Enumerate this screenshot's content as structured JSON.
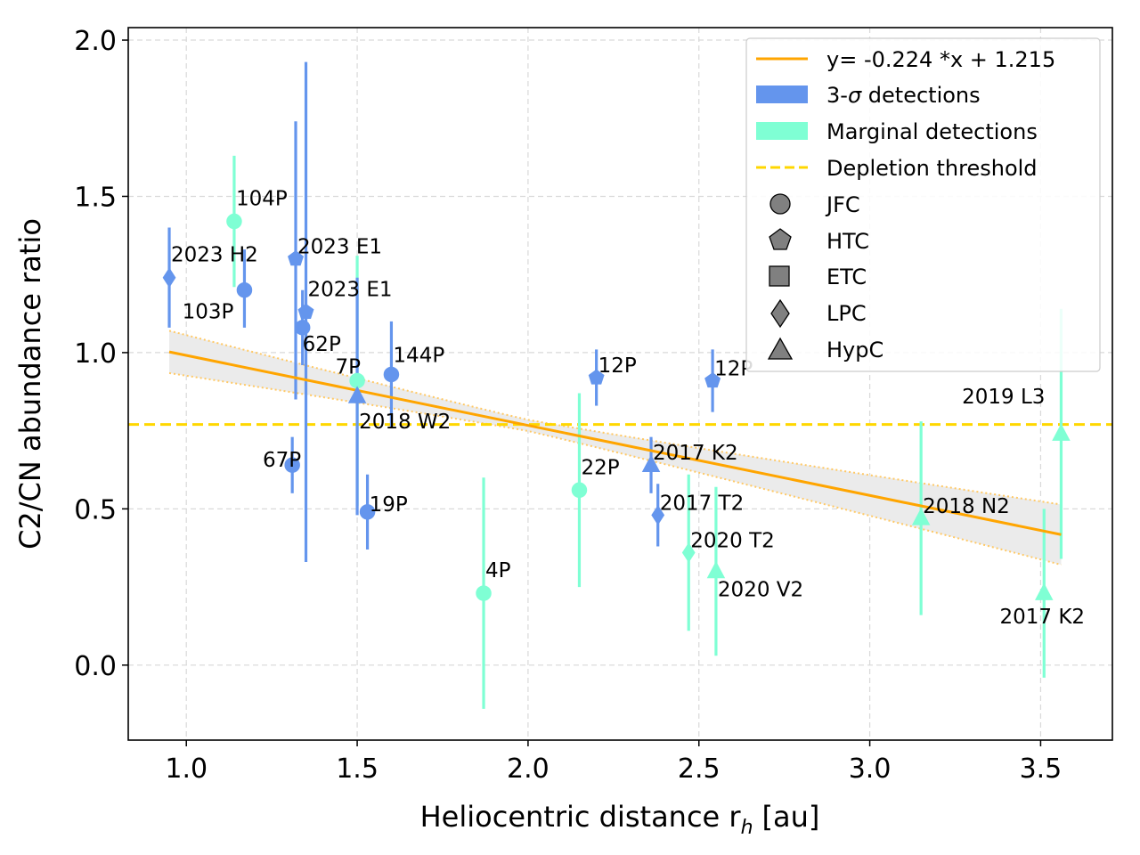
{
  "chart_data": {
    "type": "scatter",
    "xlabel": "Heliocentric distance r",
    "xlabel_sub": "h",
    "xlabel_unit": "[au]",
    "ylabel": "C2/CN abundance ratio",
    "xlim": [
      0.83,
      3.71
    ],
    "ylim": [
      -0.24,
      2.04
    ],
    "xticks": [
      "1.0",
      "1.5",
      "2.0",
      "2.5",
      "3.0",
      "3.5"
    ],
    "yticks": [
      "0.0",
      "0.5",
      "1.0",
      "1.5",
      "2.0"
    ],
    "grid": true,
    "legend_position": "top-right",
    "colors": {
      "detection": "#6495ED",
      "marginal": "#7FFFD4",
      "fit": "#FFA500",
      "threshold": "#FFD700",
      "band": "#EBEBEB"
    },
    "fit": {
      "label": "y= -0.224 *x + 1.215",
      "slope": -0.224,
      "intercept": 1.215,
      "x_range": [
        0.95,
        3.56
      ]
    },
    "threshold": {
      "label": "Depletion threshold",
      "y": 0.77
    },
    "legend": {
      "fit": "y= -0.224 *x + 1.215",
      "detections_prefix": "3-",
      "detections_sigma": "σ",
      "detections_suffix": " detections",
      "marginal": "Marginal detections",
      "threshold": "Depletion threshold",
      "shapes": [
        "JFC",
        "HTC",
        "ETC",
        "LPC",
        "HypC"
      ]
    },
    "series": [
      {
        "label": "2023 H2",
        "x": 0.95,
        "y": 1.24,
        "yerr_lo": 0.16,
        "yerr_hi": 0.16,
        "type": "LPC",
        "detection": "3-sigma"
      },
      {
        "label": "104P",
        "x": 1.14,
        "y": 1.42,
        "yerr_lo": 0.21,
        "yerr_hi": 0.21,
        "type": "JFC",
        "detection": "marginal"
      },
      {
        "label": "103P",
        "x": 1.17,
        "y": 1.2,
        "yerr_lo": 0.12,
        "yerr_hi": 0.13,
        "type": "JFC",
        "detection": "3-sigma"
      },
      {
        "label": "2023 E1",
        "x": 1.32,
        "y": 1.3,
        "yerr_lo": 0.45,
        "yerr_hi": 0.44,
        "type": "HTC",
        "detection": "3-sigma"
      },
      {
        "label": "2023 E1",
        "x": 1.35,
        "y": 1.13,
        "yerr_lo": 0.8,
        "yerr_hi": 0.8,
        "type": "HTC",
        "detection": "3-sigma"
      },
      {
        "label": "62P",
        "x": 1.34,
        "y": 1.08,
        "yerr_lo": 0.12,
        "yerr_hi": 0.12,
        "type": "JFC",
        "detection": "3-sigma"
      },
      {
        "label": "67P",
        "x": 1.31,
        "y": 0.64,
        "yerr_lo": 0.09,
        "yerr_hi": 0.09,
        "type": "JFC",
        "detection": "3-sigma"
      },
      {
        "label": "7P",
        "x": 1.5,
        "y": 0.91,
        "yerr_lo": 0.4,
        "yerr_hi": 0.4,
        "type": "JFC",
        "detection": "marginal"
      },
      {
        "label": "2018 W2",
        "x": 1.5,
        "y": 0.86,
        "yerr_lo": 0.38,
        "yerr_hi": 0.38,
        "type": "HypC",
        "detection": "3-sigma"
      },
      {
        "label": "144P",
        "x": 1.6,
        "y": 0.93,
        "yerr_lo": 0.17,
        "yerr_hi": 0.17,
        "type": "JFC",
        "detection": "3-sigma"
      },
      {
        "label": "19P",
        "x": 1.53,
        "y": 0.49,
        "yerr_lo": 0.12,
        "yerr_hi": 0.12,
        "type": "JFC",
        "detection": "3-sigma"
      },
      {
        "label": "4P",
        "x": 1.87,
        "y": 0.23,
        "yerr_lo": 0.37,
        "yerr_hi": 0.37,
        "type": "JFC",
        "detection": "marginal"
      },
      {
        "label": "22P",
        "x": 2.15,
        "y": 0.56,
        "yerr_lo": 0.31,
        "yerr_hi": 0.31,
        "type": "JFC",
        "detection": "marginal"
      },
      {
        "label": "12P",
        "x": 2.2,
        "y": 0.92,
        "yerr_lo": 0.09,
        "yerr_hi": 0.09,
        "type": "HTC",
        "detection": "3-sigma"
      },
      {
        "label": "2017 K2",
        "x": 2.36,
        "y": 0.64,
        "yerr_lo": 0.09,
        "yerr_hi": 0.09,
        "type": "HypC",
        "detection": "3-sigma"
      },
      {
        "label": "2017 T2",
        "x": 2.38,
        "y": 0.48,
        "yerr_lo": 0.1,
        "yerr_hi": 0.1,
        "type": "LPC",
        "detection": "3-sigma"
      },
      {
        "label": "2020 T2",
        "x": 2.47,
        "y": 0.36,
        "yerr_lo": 0.25,
        "yerr_hi": 0.25,
        "type": "LPC",
        "detection": "marginal"
      },
      {
        "label": "12P",
        "x": 2.54,
        "y": 0.91,
        "yerr_lo": 0.1,
        "yerr_hi": 0.1,
        "type": "HTC",
        "detection": "3-sigma"
      },
      {
        "label": "2020 V2",
        "x": 2.55,
        "y": 0.3,
        "yerr_lo": 0.27,
        "yerr_hi": 0.27,
        "type": "HypC",
        "detection": "marginal"
      },
      {
        "label": "2018 N2",
        "x": 3.15,
        "y": 0.47,
        "yerr_lo": 0.31,
        "yerr_hi": 0.31,
        "type": "HypC",
        "detection": "marginal"
      },
      {
        "label": "2017 K2",
        "x": 3.51,
        "y": 0.23,
        "yerr_lo": 0.27,
        "yerr_hi": 0.27,
        "type": "HypC",
        "detection": "marginal"
      },
      {
        "label": "2019 L3",
        "x": 3.56,
        "y": 0.74,
        "yerr_lo": 0.4,
        "yerr_hi": 0.4,
        "type": "HypC",
        "detection": "marginal"
      }
    ]
  }
}
